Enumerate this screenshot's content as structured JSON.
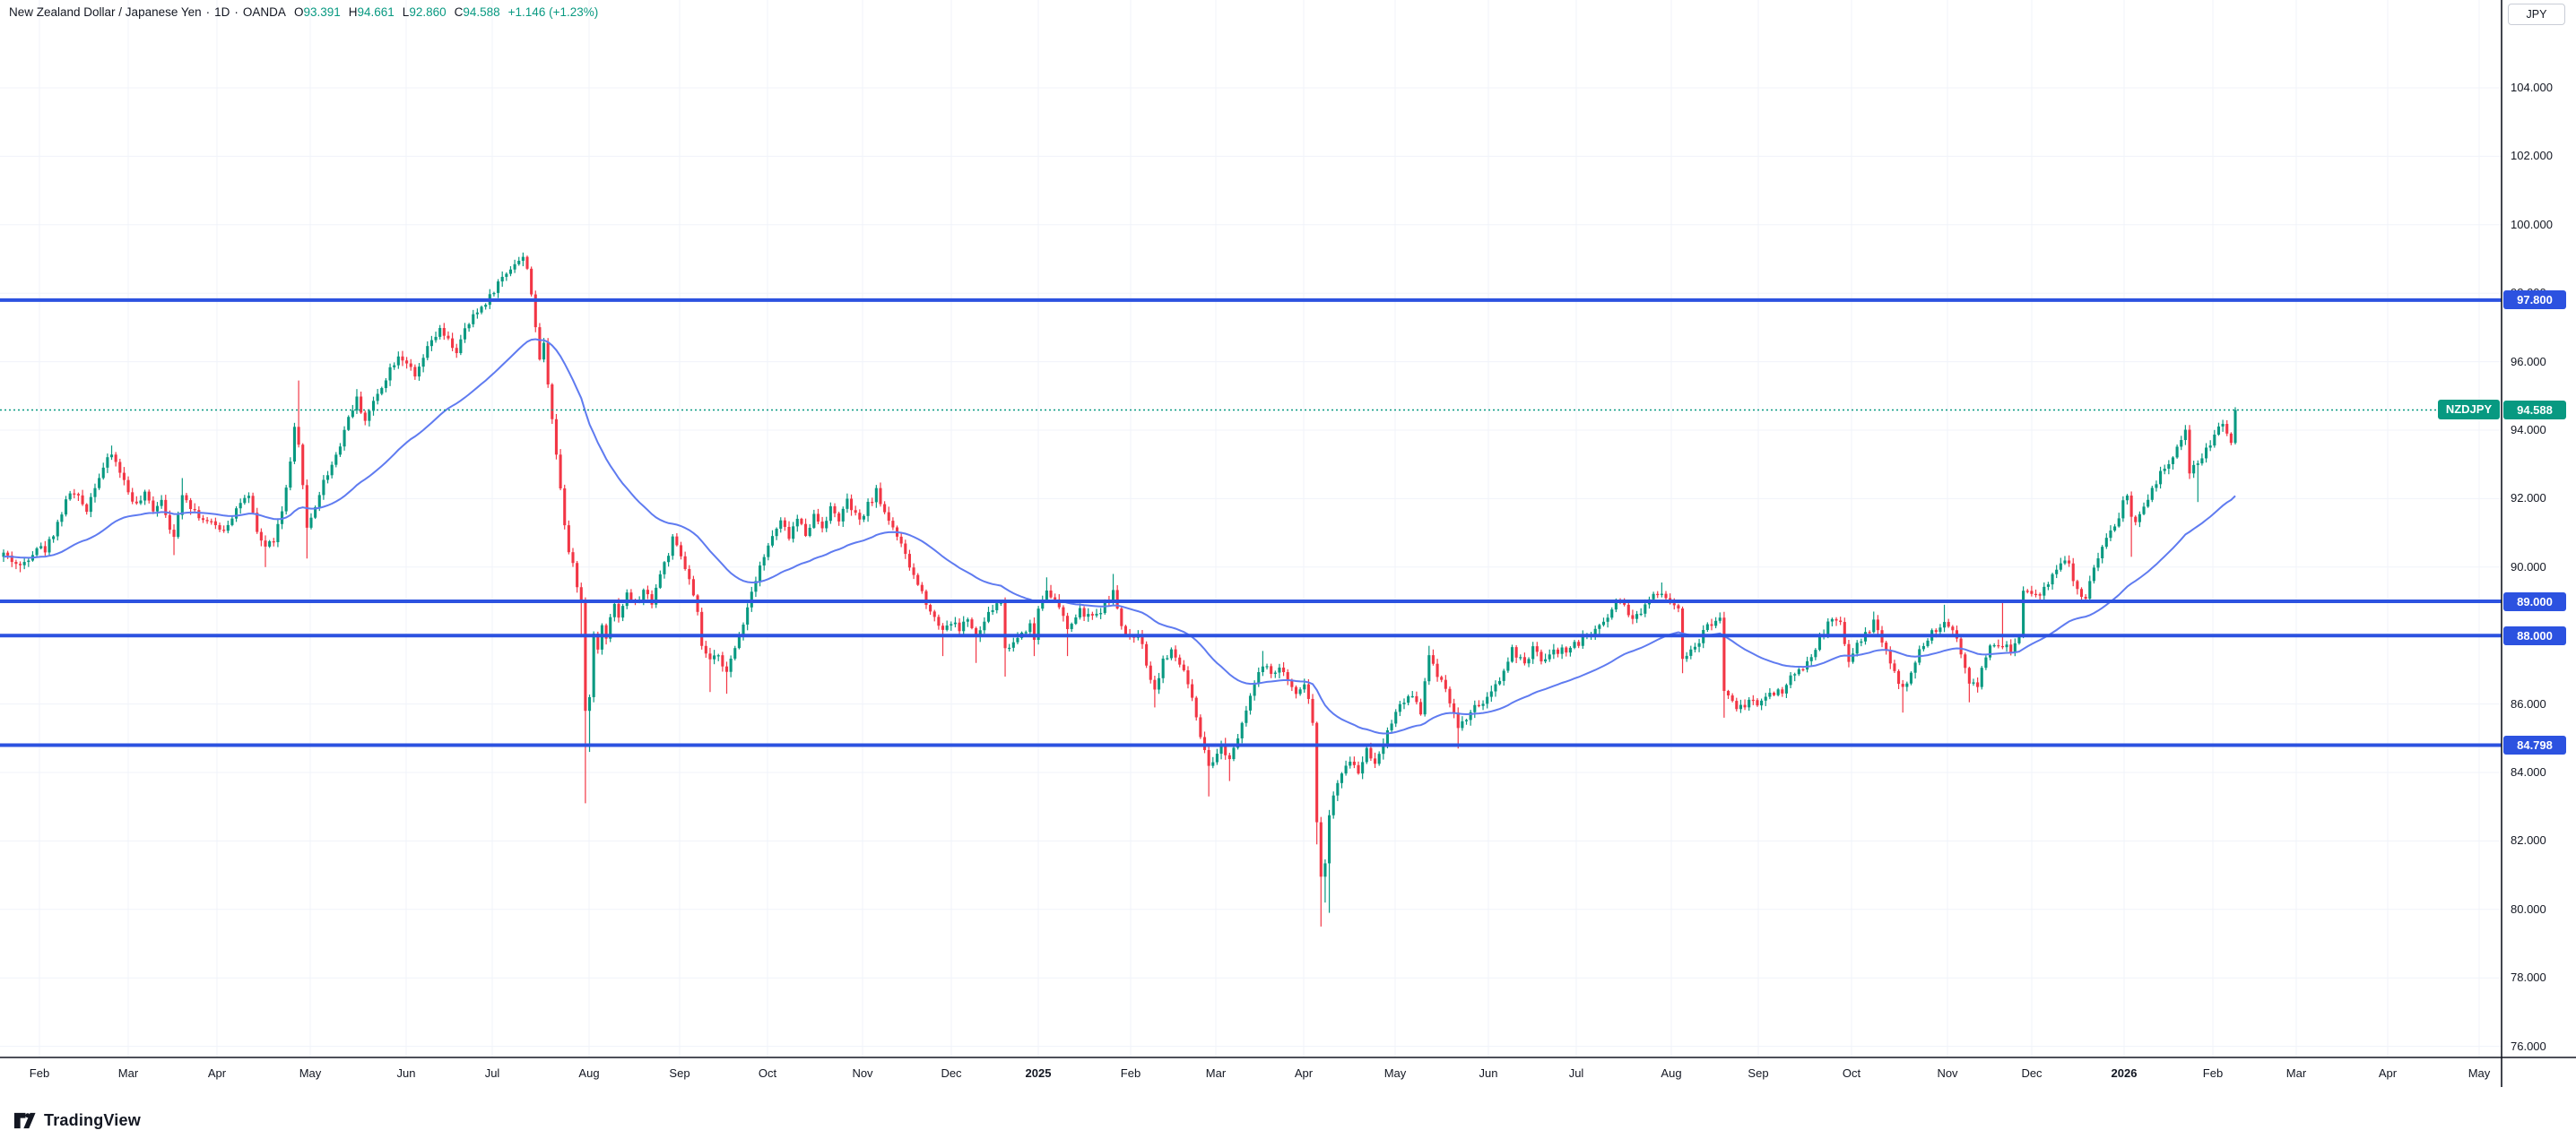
{
  "header": {
    "title": "New Zealand Dollar / Japanese Yen",
    "separator": "·",
    "interval": "1D",
    "exchange": "OANDA",
    "ohlc": {
      "o_label": "O",
      "o": "93.391",
      "h_label": "H",
      "h": "94.661",
      "l_label": "L",
      "l": "92.860",
      "c_label": "C",
      "c": "94.588",
      "change": "+1.146 (+1.23%)"
    }
  },
  "price_axis": {
    "currency_label": "JPY",
    "ticks": [
      {
        "label": "104.000",
        "price": 104
      },
      {
        "label": "102.000",
        "price": 102
      },
      {
        "label": "100.000",
        "price": 100
      },
      {
        "label": "98.000",
        "price": 98
      },
      {
        "label": "96.000",
        "price": 96
      },
      {
        "label": "94.000",
        "price": 94
      },
      {
        "label": "92.000",
        "price": 92
      },
      {
        "label": "90.000",
        "price": 90
      },
      {
        "label": "88.000",
        "price": 88
      },
      {
        "label": "86.000",
        "price": 86
      },
      {
        "label": "84.000",
        "price": 84
      },
      {
        "label": "82.000",
        "price": 82
      },
      {
        "label": "80.000",
        "price": 80
      },
      {
        "label": "78.000",
        "price": 78
      },
      {
        "label": "76.000",
        "price": 76
      }
    ],
    "level_labels": [
      {
        "label": "97.800",
        "price": 97.8
      },
      {
        "label": "89.000",
        "price": 89.0
      },
      {
        "label": "88.000",
        "price": 88.0
      },
      {
        "label": "84.798",
        "price": 84.798
      }
    ],
    "last_price_label": {
      "label": "94.588",
      "price": 94.588
    }
  },
  "symbol_marker": {
    "label": "NZDJPY"
  },
  "time_axis": {
    "labels": [
      {
        "label": "Feb",
        "x": 44,
        "bold": false
      },
      {
        "label": "Mar",
        "x": 143,
        "bold": false
      },
      {
        "label": "Apr",
        "x": 242,
        "bold": false
      },
      {
        "label": "May",
        "x": 346,
        "bold": false
      },
      {
        "label": "Jun",
        "x": 453,
        "bold": false
      },
      {
        "label": "Jul",
        "x": 549,
        "bold": false
      },
      {
        "label": "Aug",
        "x": 657,
        "bold": false
      },
      {
        "label": "Sep",
        "x": 758,
        "bold": false
      },
      {
        "label": "Oct",
        "x": 856,
        "bold": false
      },
      {
        "label": "Nov",
        "x": 962,
        "bold": false
      },
      {
        "label": "Dec",
        "x": 1061,
        "bold": false
      },
      {
        "label": "2025",
        "x": 1158,
        "bold": true
      },
      {
        "label": "Feb",
        "x": 1261,
        "bold": false
      },
      {
        "label": "Mar",
        "x": 1356,
        "bold": false
      },
      {
        "label": "Apr",
        "x": 1454,
        "bold": false
      },
      {
        "label": "May",
        "x": 1556,
        "bold": false
      },
      {
        "label": "Jun",
        "x": 1660,
        "bold": false
      },
      {
        "label": "Jul",
        "x": 1758,
        "bold": false
      },
      {
        "label": "Aug",
        "x": 1864,
        "bold": false
      },
      {
        "label": "Sep",
        "x": 1961,
        "bold": false
      },
      {
        "label": "Oct",
        "x": 2065,
        "bold": false
      },
      {
        "label": "Nov",
        "x": 2172,
        "bold": false
      },
      {
        "label": "Dec",
        "x": 2266,
        "bold": false
      },
      {
        "label": "2026",
        "x": 2369,
        "bold": true
      },
      {
        "label": "Feb",
        "x": 2468,
        "bold": false
      },
      {
        "label": "Mar",
        "x": 2561,
        "bold": false
      },
      {
        "label": "Apr",
        "x": 2663,
        "bold": false
      },
      {
        "label": "May",
        "x": 2765,
        "bold": false
      }
    ]
  },
  "logo": {
    "brand": "TradingView"
  },
  "colors": {
    "up": "#089981",
    "down": "#f23645",
    "ma_line": "#5f7bf0",
    "level_line": "#2c52e0",
    "grid": "#f0f3fa",
    "text": "#131722",
    "axis_border": "#131722",
    "last_price_bg": "#089981",
    "level_label_bg": "#2c52e0"
  },
  "chart_data": {
    "type": "candlestick",
    "symbol": "NZDJPY",
    "title": "New Zealand Dollar / Japanese Yen",
    "interval": "1D",
    "exchange": "OANDA",
    "ylim": [
      76,
      104
    ],
    "visible_time_range": "Jan 2024 - May 2026",
    "grid": true,
    "last_price": 94.588,
    "horizontal_levels": [
      97.8,
      89.0,
      88.0,
      84.798
    ],
    "ma": {
      "type": "ema",
      "period": 45,
      "seed_value": 90.3
    },
    "candle_count": 538,
    "seed": 42,
    "noise": 0.22,
    "wick": 0.14,
    "close_path_anchors": [
      [
        0,
        90.4
      ],
      [
        2,
        90.2
      ],
      [
        4,
        90.0
      ],
      [
        6,
        90.3
      ],
      [
        8,
        90.6
      ],
      [
        10,
        90.5
      ],
      [
        12,
        91.0
      ],
      [
        14,
        91.6
      ],
      [
        16,
        92.2
      ],
      [
        18,
        92.0
      ],
      [
        20,
        91.7
      ],
      [
        22,
        92.4
      ],
      [
        24,
        92.9
      ],
      [
        26,
        93.3
      ],
      [
        28,
        92.8
      ],
      [
        30,
        92.2
      ],
      [
        32,
        91.8
      ],
      [
        34,
        92.1
      ],
      [
        36,
        91.7
      ],
      [
        38,
        92.0
      ],
      [
        40,
        91.2
      ],
      [
        41,
        90.8
      ],
      [
        43,
        92.2
      ],
      [
        45,
        91.8
      ],
      [
        47,
        91.5
      ],
      [
        49,
        91.3
      ],
      [
        51,
        91.2
      ],
      [
        53,
        91.1
      ],
      [
        55,
        91.5
      ],
      [
        57,
        91.9
      ],
      [
        59,
        92.0
      ],
      [
        61,
        91.0
      ],
      [
        63,
        90.6
      ],
      [
        65,
        90.8
      ],
      [
        67,
        91.6
      ],
      [
        69,
        93.0
      ],
      [
        70,
        94.0
      ],
      [
        71,
        93.5
      ],
      [
        72,
        92.5
      ],
      [
        73,
        91.1
      ],
      [
        75,
        91.8
      ],
      [
        77,
        92.5
      ],
      [
        79,
        93.0
      ],
      [
        81,
        93.6
      ],
      [
        83,
        94.4
      ],
      [
        85,
        94.9
      ],
      [
        87,
        94.3
      ],
      [
        89,
        94.8
      ],
      [
        91,
        95.3
      ],
      [
        93,
        95.8
      ],
      [
        95,
        96.2
      ],
      [
        97,
        96.0
      ],
      [
        99,
        95.5
      ],
      [
        101,
        96.1
      ],
      [
        103,
        96.6
      ],
      [
        105,
        96.9
      ],
      [
        107,
        96.6
      ],
      [
        109,
        96.3
      ],
      [
        111,
        96.9
      ],
      [
        113,
        97.3
      ],
      [
        115,
        97.6
      ],
      [
        117,
        97.9
      ],
      [
        119,
        98.3
      ],
      [
        121,
        98.6
      ],
      [
        123,
        98.9
      ],
      [
        125,
        99.0
      ],
      [
        126,
        98.8
      ],
      [
        127,
        98.0
      ],
      [
        128,
        96.9
      ],
      [
        129,
        96.1
      ],
      [
        130,
        96.5
      ],
      [
        131,
        95.4
      ],
      [
        132,
        94.4
      ],
      [
        133,
        93.3
      ],
      [
        134,
        92.3
      ],
      [
        135,
        91.3
      ],
      [
        136,
        90.5
      ],
      [
        137,
        90.2
      ],
      [
        138,
        89.4
      ],
      [
        139,
        89.0
      ],
      [
        140,
        85.7
      ],
      [
        141,
        86.3
      ],
      [
        142,
        88.0
      ],
      [
        143,
        87.6
      ],
      [
        144,
        88.3
      ],
      [
        145,
        88.0
      ],
      [
        146,
        88.6
      ],
      [
        147,
        88.9
      ],
      [
        148,
        88.6
      ],
      [
        150,
        89.2
      ],
      [
        152,
        88.9
      ],
      [
        154,
        89.3
      ],
      [
        156,
        89.0
      ],
      [
        158,
        89.8
      ],
      [
        160,
        90.4
      ],
      [
        161,
        90.8
      ],
      [
        163,
        90.3
      ],
      [
        165,
        89.6
      ],
      [
        167,
        88.6
      ],
      [
        168,
        87.7
      ],
      [
        170,
        87.2
      ],
      [
        172,
        87.5
      ],
      [
        174,
        86.9
      ],
      [
        176,
        87.6
      ],
      [
        178,
        88.4
      ],
      [
        180,
        89.3
      ],
      [
        182,
        90.1
      ],
      [
        183,
        90.3
      ],
      [
        185,
        90.9
      ],
      [
        187,
        91.3
      ],
      [
        189,
        90.9
      ],
      [
        191,
        91.4
      ],
      [
        193,
        91.0
      ],
      [
        195,
        91.5
      ],
      [
        197,
        91.2
      ],
      [
        199,
        91.7
      ],
      [
        201,
        91.4
      ],
      [
        203,
        91.9
      ],
      [
        205,
        91.5
      ],
      [
        206,
        91.3
      ],
      [
        208,
        91.8
      ],
      [
        210,
        92.2
      ],
      [
        212,
        91.6
      ],
      [
        214,
        91.2
      ],
      [
        216,
        90.6
      ],
      [
        218,
        90.0
      ],
      [
        220,
        89.5
      ],
      [
        222,
        89.0
      ],
      [
        224,
        88.5
      ],
      [
        226,
        88.2
      ],
      [
        228,
        88.4
      ],
      [
        230,
        88.2
      ],
      [
        232,
        88.5
      ],
      [
        234,
        87.9
      ],
      [
        236,
        88.4
      ],
      [
        238,
        88.8
      ],
      [
        240,
        89.0
      ],
      [
        241,
        87.6
      ],
      [
        243,
        87.8
      ],
      [
        245,
        88.1
      ],
      [
        247,
        88.3
      ],
      [
        248,
        87.9
      ],
      [
        249,
        88.8
      ],
      [
        251,
        89.4
      ],
      [
        254,
        88.8
      ],
      [
        256,
        88.2
      ],
      [
        259,
        88.7
      ],
      [
        262,
        88.5
      ],
      [
        265,
        88.9
      ],
      [
        267,
        89.3
      ],
      [
        269,
        88.2
      ],
      [
        271,
        87.9
      ],
      [
        273,
        88.1
      ],
      [
        275,
        87.2
      ],
      [
        277,
        86.4
      ],
      [
        279,
        87.3
      ],
      [
        281,
        87.5
      ],
      [
        284,
        87.0
      ],
      [
        286,
        86.1
      ],
      [
        288,
        85.0
      ],
      [
        290,
        84.1
      ],
      [
        291,
        84.3
      ],
      [
        293,
        84.8
      ],
      [
        295,
        84.4
      ],
      [
        297,
        85.1
      ],
      [
        299,
        85.9
      ],
      [
        301,
        86.6
      ],
      [
        303,
        87.1
      ],
      [
        305,
        86.9
      ],
      [
        307,
        87.0
      ],
      [
        309,
        86.7
      ],
      [
        311,
        86.4
      ],
      [
        313,
        86.6
      ],
      [
        314,
        86.1
      ],
      [
        315,
        85.5
      ],
      [
        316,
        82.6
      ],
      [
        317,
        80.9
      ],
      [
        318,
        81.4
      ],
      [
        319,
        82.8
      ],
      [
        320,
        83.3
      ],
      [
        322,
        83.9
      ],
      [
        324,
        84.4
      ],
      [
        326,
        84.0
      ],
      [
        328,
        84.7
      ],
      [
        330,
        84.3
      ],
      [
        332,
        84.9
      ],
      [
        334,
        85.5
      ],
      [
        336,
        86.0
      ],
      [
        339,
        86.3
      ],
      [
        341,
        85.8
      ],
      [
        343,
        87.4
      ],
      [
        344,
        87.1
      ],
      [
        347,
        86.5
      ],
      [
        350,
        85.3
      ],
      [
        352,
        85.6
      ],
      [
        355,
        86.0
      ],
      [
        357,
        86.1
      ],
      [
        360,
        86.7
      ],
      [
        363,
        87.6
      ],
      [
        366,
        87.1
      ],
      [
        368,
        87.6
      ],
      [
        370,
        87.3
      ],
      [
        373,
        87.5
      ],
      [
        376,
        87.6
      ],
      [
        379,
        87.8
      ],
      [
        382,
        88.1
      ],
      [
        385,
        88.4
      ],
      [
        388,
        89.0
      ],
      [
        390,
        88.9
      ],
      [
        392,
        88.5
      ],
      [
        394,
        88.7
      ],
      [
        397,
        89.2
      ],
      [
        399,
        89.3
      ],
      [
        401,
        89.0
      ],
      [
        403,
        88.8
      ],
      [
        404,
        87.4
      ],
      [
        407,
        87.6
      ],
      [
        410,
        88.3
      ],
      [
        413,
        88.5
      ],
      [
        414,
        86.4
      ],
      [
        416,
        86.0
      ],
      [
        418,
        85.9
      ],
      [
        420,
        86.1
      ],
      [
        422,
        86.0
      ],
      [
        425,
        86.3
      ],
      [
        428,
        86.4
      ],
      [
        431,
        86.9
      ],
      [
        434,
        87.2
      ],
      [
        437,
        87.9
      ],
      [
        440,
        88.5
      ],
      [
        442,
        88.3
      ],
      [
        444,
        87.3
      ],
      [
        446,
        87.7
      ],
      [
        448,
        88.0
      ],
      [
        450,
        88.4
      ],
      [
        452,
        87.8
      ],
      [
        454,
        87.2
      ],
      [
        456,
        86.6
      ],
      [
        457,
        86.4
      ],
      [
        459,
        86.9
      ],
      [
        461,
        87.5
      ],
      [
        463,
        87.9
      ],
      [
        465,
        88.2
      ],
      [
        467,
        88.3
      ],
      [
        469,
        88.2
      ],
      [
        471,
        87.5
      ],
      [
        473,
        86.5
      ],
      [
        475,
        86.6
      ],
      [
        477,
        87.4
      ],
      [
        479,
        87.8
      ],
      [
        481,
        87.7
      ],
      [
        483,
        87.6
      ],
      [
        485,
        88.1
      ],
      [
        486,
        89.2
      ],
      [
        488,
        89.3
      ],
      [
        490,
        89.2
      ],
      [
        492,
        89.6
      ],
      [
        494,
        89.9
      ],
      [
        496,
        90.3
      ],
      [
        498,
        89.7
      ],
      [
        500,
        89.15
      ],
      [
        501,
        89.1
      ],
      [
        503,
        89.9
      ],
      [
        505,
        90.5
      ],
      [
        507,
        91.0
      ],
      [
        509,
        91.35
      ],
      [
        510,
        91.9
      ],
      [
        511,
        92.05
      ],
      [
        512,
        91.5
      ],
      [
        513,
        91.4
      ],
      [
        515,
        91.85
      ],
      [
        517,
        92.25
      ],
      [
        519,
        92.7
      ],
      [
        521,
        93.1
      ],
      [
        523,
        93.45
      ],
      [
        525,
        93.95
      ],
      [
        526,
        92.75
      ],
      [
        528,
        93.0
      ],
      [
        530,
        93.45
      ],
      [
        532,
        93.8
      ],
      [
        534,
        94.25
      ],
      [
        535,
        93.95
      ],
      [
        536,
        93.6
      ],
      [
        537,
        94.588
      ]
    ],
    "wick_spikes": [
      [
        4,
        "l",
        89.85
      ],
      [
        26,
        "h",
        93.55
      ],
      [
        41,
        "l",
        90.35
      ],
      [
        43,
        "h",
        92.6
      ],
      [
        63,
        "l",
        90.0
      ],
      [
        71,
        "h",
        95.45
      ],
      [
        73,
        "l",
        90.25
      ],
      [
        85,
        "h",
        95.2
      ],
      [
        125,
        "h",
        99.05
      ],
      [
        139,
        "l",
        87.95
      ],
      [
        140,
        "l",
        83.1
      ],
      [
        141,
        "l",
        84.6
      ],
      [
        170,
        "l",
        86.35
      ],
      [
        174,
        "l",
        86.3
      ],
      [
        203,
        "h",
        92.15
      ],
      [
        210,
        "h",
        92.4
      ],
      [
        226,
        "l",
        87.4
      ],
      [
        234,
        "l",
        87.2
      ],
      [
        241,
        "l",
        86.8
      ],
      [
        248,
        "l",
        87.4
      ],
      [
        251,
        "h",
        89.7
      ],
      [
        256,
        "l",
        87.4
      ],
      [
        267,
        "h",
        89.8
      ],
      [
        277,
        "l",
        85.9
      ],
      [
        290,
        "l",
        83.3
      ],
      [
        295,
        "l",
        83.75
      ],
      [
        303,
        "h",
        87.55
      ],
      [
        316,
        "l",
        81.9
      ],
      [
        317,
        "l",
        79.5
      ],
      [
        318,
        "l",
        80.2
      ],
      [
        319,
        "l",
        79.9
      ],
      [
        343,
        "h",
        87.7
      ],
      [
        350,
        "l",
        84.7
      ],
      [
        399,
        "h",
        89.55
      ],
      [
        404,
        "l",
        86.9
      ],
      [
        414,
        "l",
        85.6
      ],
      [
        450,
        "h",
        88.7
      ],
      [
        457,
        "l",
        85.75
      ],
      [
        467,
        "h",
        88.9
      ],
      [
        473,
        "l",
        86.05
      ],
      [
        481,
        "h",
        89.0
      ],
      [
        512,
        "l",
        90.3
      ],
      [
        525,
        "h",
        94.15
      ],
      [
        526,
        "h",
        94.15
      ],
      [
        528,
        "l",
        91.9
      ],
      [
        537,
        "h",
        94.67
      ]
    ]
  }
}
